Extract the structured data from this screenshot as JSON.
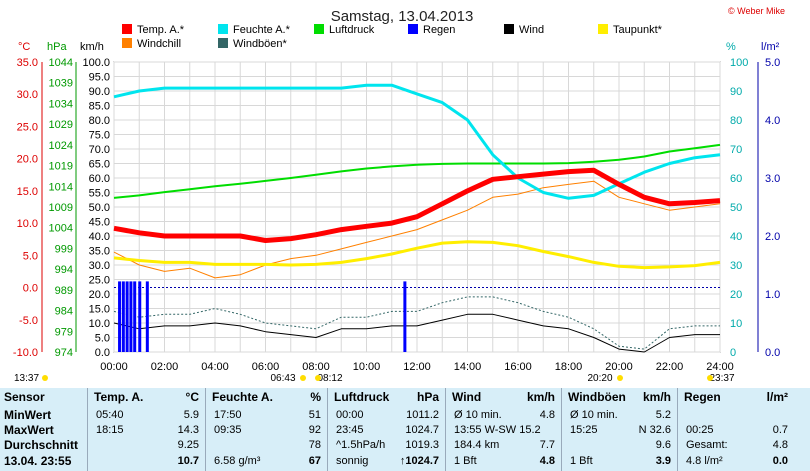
{
  "title": "Samstag, 13.04.2013",
  "credit": "© Weber Mike",
  "legend": [
    {
      "label": "Temp. A.*",
      "color": "#ff0000"
    },
    {
      "label": "Feuchte A.*",
      "color": "#00e5ee"
    },
    {
      "label": "Luftdruck",
      "color": "#00dd00"
    },
    {
      "label": "Regen",
      "color": "#0000ff"
    },
    {
      "label": "Wind",
      "color": "#000000"
    },
    {
      "label": "Taupunkt*",
      "color": "#ffee00"
    },
    {
      "label": "Windchill",
      "color": "#ff8000"
    },
    {
      "label": "Windböen*",
      "color": "#336666"
    }
  ],
  "units": {
    "temp": "°C",
    "press": "hPa",
    "wind": "km/h",
    "hum": "%",
    "rain": "l/m²"
  },
  "axes": {
    "temp": [
      "35.0",
      "30.0",
      "25.0",
      "20.0",
      "15.0",
      "10.0",
      "5.0",
      "0.0",
      "-5.0",
      "-10.0"
    ],
    "press": [
      "1044",
      "1039",
      "1034",
      "1029",
      "1024",
      "1019",
      "1014",
      "1009",
      "1004",
      "999",
      "994",
      "989",
      "984",
      "979",
      "974"
    ],
    "wind": [
      "100.0",
      "95.0",
      "90.0",
      "85.0",
      "80.0",
      "75.0",
      "70.0",
      "65.0",
      "60.0",
      "55.0",
      "50.0",
      "45.0",
      "40.0",
      "35.0",
      "30.0",
      "25.0",
      "20.0",
      "15.0",
      "10.0",
      "5.0",
      "0.0"
    ],
    "hum": [
      "100",
      "90",
      "80",
      "70",
      "60",
      "50",
      "40",
      "30",
      "20",
      "10",
      "0"
    ],
    "rain": [
      "5.0",
      "4.0",
      "3.0",
      "2.0",
      "1.0",
      "0.0"
    ],
    "x": [
      "00:00",
      "02:00",
      "04:00",
      "06:00",
      "08:00",
      "10:00",
      "12:00",
      "14:00",
      "16:00",
      "18:00",
      "20:00",
      "22:00",
      "24:00"
    ]
  },
  "sun_marks": {
    "left": "13:37",
    "sunrise": "06:43",
    "moonrise": "08:12",
    "sunset": "20:20",
    "moonset": "23:37"
  },
  "chart_data": {
    "type": "line",
    "x_hours": [
      0,
      1,
      2,
      3,
      4,
      5,
      6,
      7,
      8,
      9,
      10,
      11,
      12,
      13,
      14,
      15,
      16,
      17,
      18,
      19,
      20,
      21,
      22,
      23,
      24
    ],
    "series": [
      {
        "name": "Temp. A.*",
        "unit": "°C",
        "values": [
          9.2,
          8.5,
          8.0,
          8.0,
          8.0,
          8.0,
          7.3,
          7.6,
          8.2,
          9.0,
          9.5,
          10.0,
          11.0,
          13.0,
          15.0,
          16.8,
          17.2,
          17.6,
          18.0,
          18.2,
          16.0,
          14.0,
          13.0,
          13.2,
          13.5
        ]
      },
      {
        "name": "Feuchte A.*",
        "unit": "%",
        "values": [
          88,
          90,
          91,
          91,
          91,
          91,
          91,
          91,
          91,
          91,
          92,
          92,
          89,
          86,
          80,
          68,
          60,
          55,
          53,
          54,
          58,
          62,
          65,
          67,
          68
        ]
      },
      {
        "name": "Luftdruck",
        "unit": "hPa",
        "values": [
          1011.2,
          1011.8,
          1012.6,
          1013.3,
          1014.0,
          1014.6,
          1015.3,
          1016.0,
          1016.8,
          1017.6,
          1018.3,
          1018.8,
          1019.2,
          1019.4,
          1019.5,
          1019.5,
          1019.5,
          1019.5,
          1019.6,
          1019.9,
          1020.4,
          1021.2,
          1022.4,
          1023.2,
          1024.0
        ]
      },
      {
        "name": "Taupunkt*",
        "unit": "°C",
        "values": [
          4.6,
          4.2,
          3.9,
          3.9,
          3.6,
          3.6,
          3.6,
          3.5,
          3.6,
          3.9,
          4.5,
          5.2,
          6.1,
          6.9,
          7.1,
          7.0,
          6.5,
          5.6,
          4.8,
          3.9,
          3.3,
          3.1,
          3.2,
          3.4,
          3.9
        ]
      },
      {
        "name": "Windchill",
        "unit": "°C",
        "values": [
          5.5,
          3.5,
          2.5,
          3.0,
          1.5,
          2.0,
          3.5,
          4.5,
          5.0,
          6.0,
          7.0,
          8.0,
          9.0,
          10.5,
          12.0,
          14.0,
          14.5,
          15.5,
          16.0,
          16.5,
          14.0,
          13.0,
          12.0,
          12.5,
          13.0
        ]
      },
      {
        "name": "Wind",
        "unit": "km/h",
        "values": [
          10,
          8,
          9,
          9,
          10,
          9,
          7,
          6,
          5,
          8,
          8,
          9,
          9,
          11,
          13,
          13,
          11,
          9,
          8,
          5,
          1,
          0,
          5,
          6,
          6
        ]
      },
      {
        "name": "Windböen*",
        "unit": "km/h",
        "values": [
          14,
          12,
          13,
          13,
          15,
          13,
          10,
          9,
          8,
          12,
          12,
          14,
          14,
          17,
          19,
          19,
          17,
          14,
          12,
          8,
          2,
          1,
          8,
          9,
          9
        ]
      }
    ],
    "rain_marks_hours": [
      0.2,
      0.35,
      0.5,
      0.65,
      0.8,
      1.0,
      1.3,
      11.5
    ],
    "rain_values_mm": [
      0.7,
      0.7,
      0.7,
      0.7,
      0.7,
      0.7,
      0.7,
      0.7
    ]
  },
  "table": {
    "sensor": {
      "header": "Sensor",
      "rows": [
        "MinWert",
        "MaxWert",
        "Durchschnitt",
        "13.04.  23:55"
      ]
    },
    "temp": {
      "header": "Temp. A.",
      "unit": "°C",
      "rows": [
        [
          "05:40",
          "5.9"
        ],
        [
          "18:15",
          "14.3"
        ],
        [
          "",
          "9.25"
        ],
        [
          "",
          "10.7"
        ]
      ]
    },
    "feuchte": {
      "header": "Feuchte A.",
      "unit": "%",
      "rows": [
        [
          "17:50",
          "51"
        ],
        [
          "09:35",
          "92"
        ],
        [
          "",
          "78"
        ],
        [
          "6.58 g/m³",
          "67"
        ]
      ]
    },
    "luftdruck": {
      "header": "Luftdruck",
      "unit": "hPa",
      "rows": [
        [
          "00:00",
          "1011.2"
        ],
        [
          "23:45",
          "1024.7"
        ],
        [
          "^1.5hPa/h",
          "1019.3"
        ],
        [
          "sonnig",
          "↑1024.7"
        ]
      ]
    },
    "wind": {
      "header": "Wind",
      "unit": "km/h",
      "rows": [
        [
          "Ø 10 min.",
          "4.8"
        ],
        [
          "13:55   W-SW 15.2",
          ""
        ],
        [
          "184.4 km",
          "7.7"
        ],
        [
          "1 Bft",
          "4.8"
        ]
      ]
    },
    "windboen": {
      "header": "Windböen",
      "unit": "km/h",
      "rows": [
        [
          "Ø 10 min.",
          "5.2"
        ],
        [
          "15:25",
          "N 32.6"
        ],
        [
          "",
          "9.6"
        ],
        [
          "1 Bft",
          "3.9"
        ]
      ]
    },
    "regen": {
      "header": "Regen",
      "unit": "l/m²",
      "rows": [
        [
          "",
          ""
        ],
        [
          "00:25",
          "0.7"
        ],
        [
          "Gesamt:",
          "4.8"
        ],
        [
          "4.8 l/m²",
          "0.0"
        ]
      ]
    }
  }
}
